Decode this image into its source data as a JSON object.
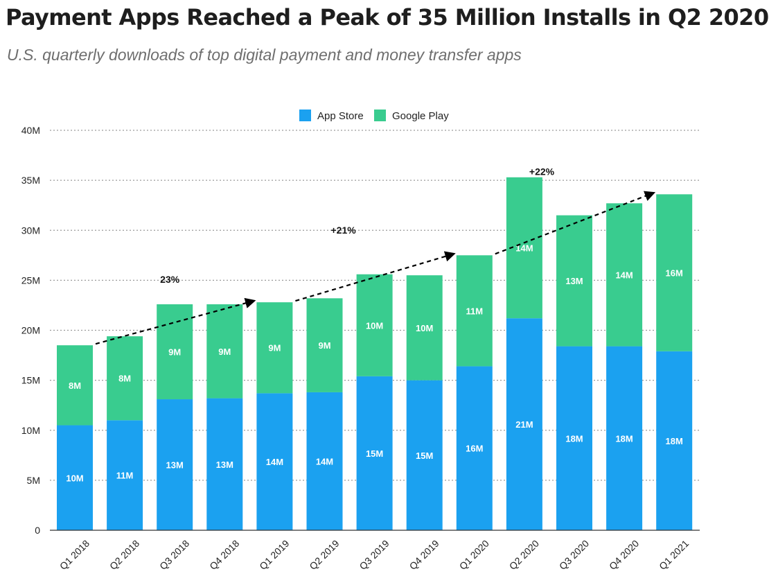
{
  "chart_data": {
    "type": "bar",
    "stacked": true,
    "title": "Payment Apps Reached a Peak of 35 Million Installs in Q2 2020",
    "subtitle": "U.S. quarterly downloads of top digital payment and money transfer apps",
    "categories": [
      "Q1 2018",
      "Q2 2018",
      "Q3 2018",
      "Q4 2018",
      "Q1 2019",
      "Q2 2019",
      "Q3 2019",
      "Q4 2019",
      "Q1 2020",
      "Q2 2020",
      "Q3 2020",
      "Q4 2020",
      "Q1 2021"
    ],
    "series": [
      {
        "name": "App Store",
        "color": "#1ba1f0",
        "values": [
          10.5,
          11.0,
          13.1,
          13.2,
          13.7,
          13.8,
          15.4,
          15.0,
          16.4,
          21.2,
          18.4,
          18.4,
          17.9
        ],
        "labels": [
          "10M",
          "11M",
          "13M",
          "13M",
          "14M",
          "14M",
          "15M",
          "15M",
          "16M",
          "21M",
          "18M",
          "18M",
          "18M"
        ]
      },
      {
        "name": "Google Play",
        "color": "#39cc8f",
        "values": [
          8.0,
          8.4,
          9.5,
          9.4,
          9.1,
          9.4,
          10.2,
          10.5,
          11.1,
          14.1,
          13.1,
          14.3,
          15.7
        ],
        "labels": [
          "8M",
          "8M",
          "9M",
          "9M",
          "9M",
          "9M",
          "10M",
          "10M",
          "11M",
          "14M",
          "13M",
          "14M",
          "16M"
        ]
      }
    ],
    "ylim": [
      0,
      40
    ],
    "yticks": [
      {
        "value": 0,
        "label": "0"
      },
      {
        "value": 5,
        "label": "5M"
      },
      {
        "value": 10,
        "label": "10M"
      },
      {
        "value": 15,
        "label": "15M"
      },
      {
        "value": 20,
        "label": "20M"
      },
      {
        "value": 25,
        "label": "25M"
      },
      {
        "value": 30,
        "label": "30M"
      },
      {
        "value": 35,
        "label": "35M"
      },
      {
        "value": 40,
        "label": "40M"
      }
    ],
    "xlabel": "",
    "ylabel": "",
    "grid": true,
    "legend": "top-center",
    "trend_arrows": [
      {
        "from": {
          "x": "Q1 2018",
          "y": 18.5
        },
        "to": {
          "x": "Q1 2019",
          "y": 22.8
        },
        "label": "23%"
      },
      {
        "from": {
          "x": "Q1 2019",
          "y": 22.8
        },
        "to": {
          "x": "Q1 2020",
          "y": 27.5
        },
        "label": "+21%"
      },
      {
        "from": {
          "x": "Q1 2020",
          "y": 27.5
        },
        "to": {
          "x": "Q1 2021",
          "y": 33.6
        },
        "label": "+22%"
      }
    ]
  }
}
